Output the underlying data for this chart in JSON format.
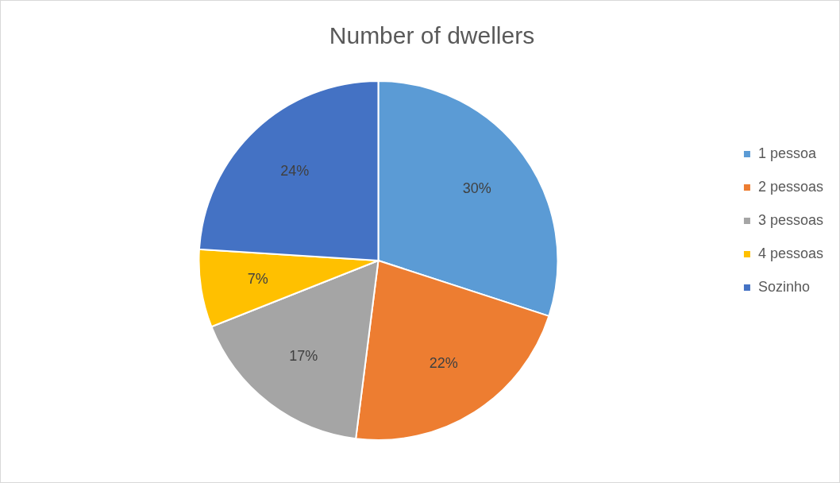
{
  "chart_data": {
    "type": "pie",
    "title": "Number of dwellers",
    "categories": [
      "1 pessoa",
      "2 pessoas",
      "3 pessoas",
      "4 pessoas",
      "Sozinho"
    ],
    "values": [
      30,
      22,
      17,
      7,
      24
    ],
    "colors": [
      "#5b9bd5",
      "#ed7d31",
      "#a5a5a5",
      "#ffc000",
      "#4472c4"
    ],
    "value_labels": [
      "30%",
      "22%",
      "17%",
      "7%",
      "24%"
    ],
    "legend": "right"
  }
}
